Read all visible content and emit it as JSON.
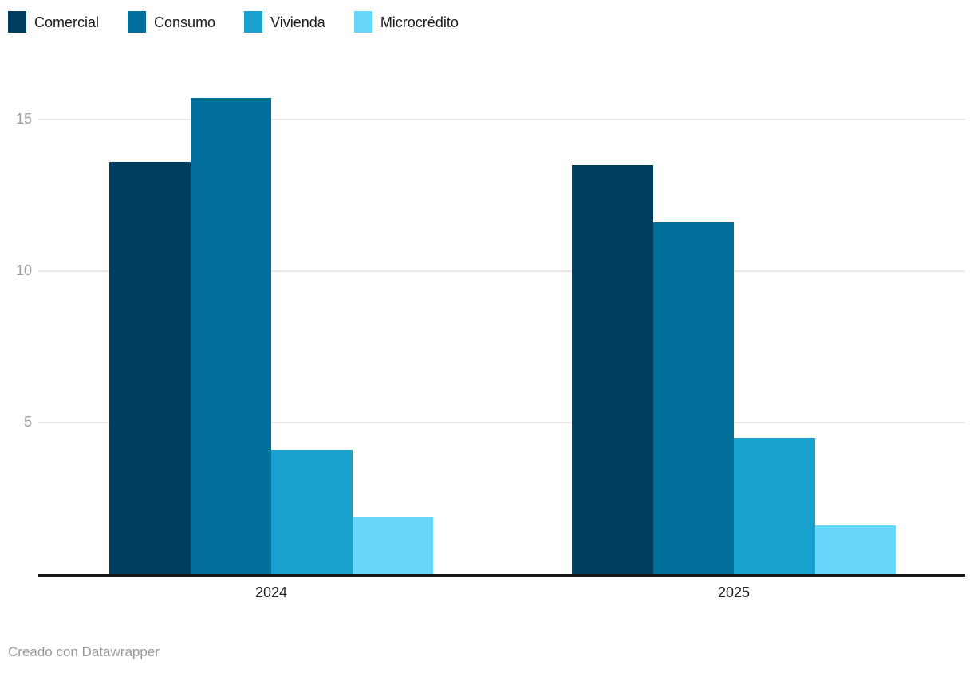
{
  "chart_data": {
    "type": "bar",
    "title": "",
    "xlabel": "",
    "ylabel": "",
    "categories": [
      "2024",
      "2025"
    ],
    "series": [
      {
        "name": "Comercial",
        "color": "#003e5f",
        "values": [
          13.6,
          13.5
        ]
      },
      {
        "name": "Consumo",
        "color": "#006f99",
        "values": [
          15.7,
          11.6
        ]
      },
      {
        "name": "Vivienda",
        "color": "#18a1cd",
        "values": [
          4.1,
          4.5
        ]
      },
      {
        "name": "Microcrédito",
        "color": "#67d6fb",
        "values": [
          1.9,
          1.6
        ]
      }
    ],
    "y_ticks": [
      5,
      10,
      15
    ],
    "ylim": [
      0,
      16.6
    ],
    "grid": true,
    "legend_position": "top-left"
  },
  "footer": {
    "credit": "Creado con Datawrapper"
  },
  "colors": {
    "background": "#ffffff",
    "axis_line": "#161616",
    "gridline": "#e7e7e7",
    "tick_label": "#9e9e9e",
    "x_label": "#262626",
    "legend_label": "#1a1a1a",
    "footer_text": "#999999"
  }
}
